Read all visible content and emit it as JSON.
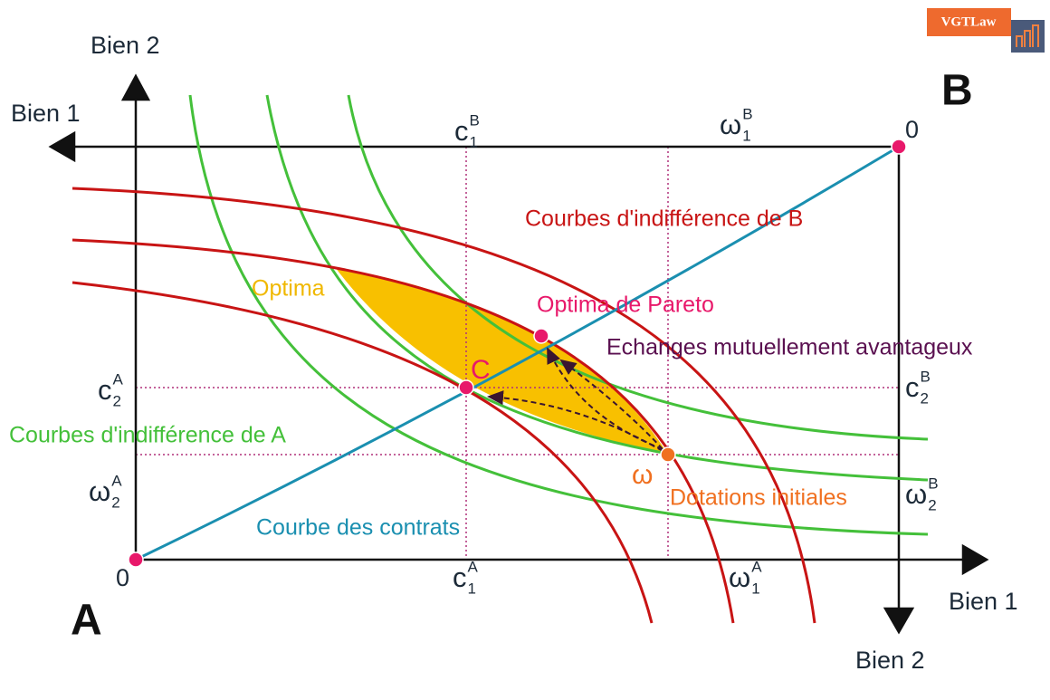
{
  "logo": "VGTLaw",
  "axes": {
    "a_bien2": "Bien 2",
    "b_bien1": "Bien 1",
    "a_bien1": "Bien 1",
    "b_bien2": "Bien 2"
  },
  "corners": {
    "a": "A",
    "b": "B",
    "a_origin": "0",
    "b_origin": "0"
  },
  "symbols": [
    {
      "base": "c",
      "sub": "1",
      "sup": "B"
    },
    {
      "base": "ω",
      "sub": "1",
      "sup": "B"
    },
    {
      "base": "c",
      "sub": "2",
      "sup": "A"
    },
    {
      "base": "ω",
      "sub": "2",
      "sup": "A"
    },
    {
      "base": "c",
      "sub": "2",
      "sup": "B"
    },
    {
      "base": "ω",
      "sub": "2",
      "sup": "B"
    },
    {
      "base": "c",
      "sub": "1",
      "sup": "A"
    },
    {
      "base": "ω",
      "sub": "1",
      "sup": "A"
    }
  ],
  "annotations": {
    "indiff_b": "Courbes d'indifférence de B",
    "optima": "Optima",
    "pareto": "Optima de Pareto",
    "echanges": "Echanges mutuellement avantageux",
    "c_point": "C",
    "indiff_a": "Courbes d'indifférence de A",
    "omega_point": "ω",
    "dotations": "Dotations initiales",
    "contrats": "Courbe des contrats"
  }
}
